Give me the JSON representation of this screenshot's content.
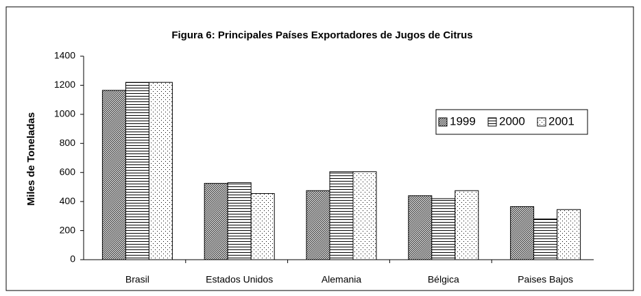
{
  "chart_data": {
    "type": "bar",
    "title": "Figura 6: Principales Países Exportadores de Jugos de Citrus",
    "y_label": "Miles de Toneladas",
    "categories": [
      "Brasil",
      "Estados Unidos",
      "Alemania",
      "Bélgica",
      "Paises Bajos"
    ],
    "series": [
      {
        "name": "1999",
        "color": "#000000",
        "pattern": "diagonal",
        "values": [
          1165,
          525,
          475,
          440,
          365
        ]
      },
      {
        "name": "2000",
        "color": "#000000",
        "pattern": "horizontal",
        "values": [
          1220,
          530,
          605,
          420,
          280
        ]
      },
      {
        "name": "2001",
        "color": "#000000",
        "pattern": "dots",
        "values": [
          1220,
          455,
          605,
          475,
          345
        ]
      }
    ],
    "ylim": [
      0,
      1400
    ],
    "yticks": [
      0,
      200,
      400,
      600,
      800,
      1000,
      1200,
      1400
    ],
    "grid": false,
    "legend": "right"
  }
}
